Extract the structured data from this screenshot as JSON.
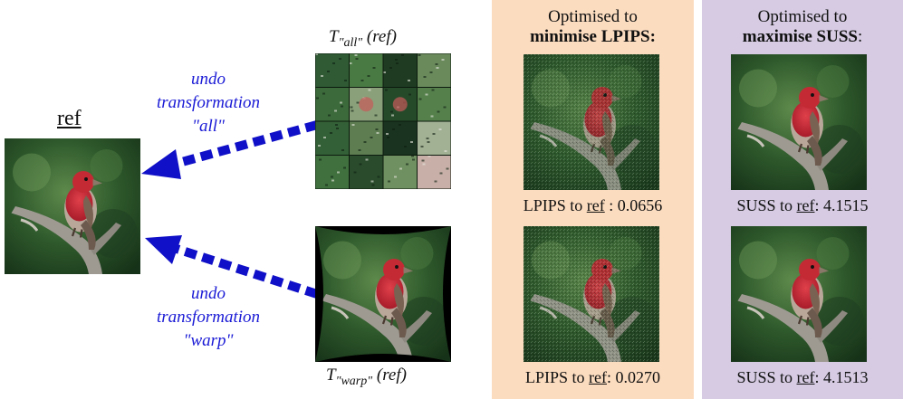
{
  "ref": {
    "label": "ref"
  },
  "transform_all": {
    "label_prefix": "T",
    "label_sub": "\"all\"",
    "label_suffix": " (ref)",
    "undo_lines": [
      "undo",
      "transformation",
      "\"all\""
    ]
  },
  "transform_warp": {
    "label_prefix": "T",
    "label_sub": "\"warp\"",
    "label_suffix": " (ref)",
    "undo_lines": [
      "undo",
      "transformation",
      "\"warp\""
    ]
  },
  "panel_lpips": {
    "title_line1": "Optimised to",
    "title_line2": "minimise LPIPS:",
    "caption1": {
      "prefix": "LPIPS to ",
      "ref": "ref",
      "suffix": " : 0.0656"
    },
    "caption2": {
      "prefix": "LPIPS to ",
      "ref": "ref",
      "suffix": ": 0.0270"
    },
    "background": "#fcdcbf"
  },
  "panel_suss": {
    "title_line1": "Optimised to",
    "title_line2_bold": "maximise SUSS",
    "title_line2_rest": ":",
    "caption1": {
      "prefix": "SUSS to ",
      "ref": "ref",
      "suffix": ": 4.1515"
    },
    "caption2": {
      "prefix": "SUSS to ",
      "ref": "ref",
      "suffix": ": 4.1513"
    },
    "background": "#d6cbe3"
  },
  "colors": {
    "arrow": "#1010c8",
    "undo_text": "#1a1ad6"
  }
}
